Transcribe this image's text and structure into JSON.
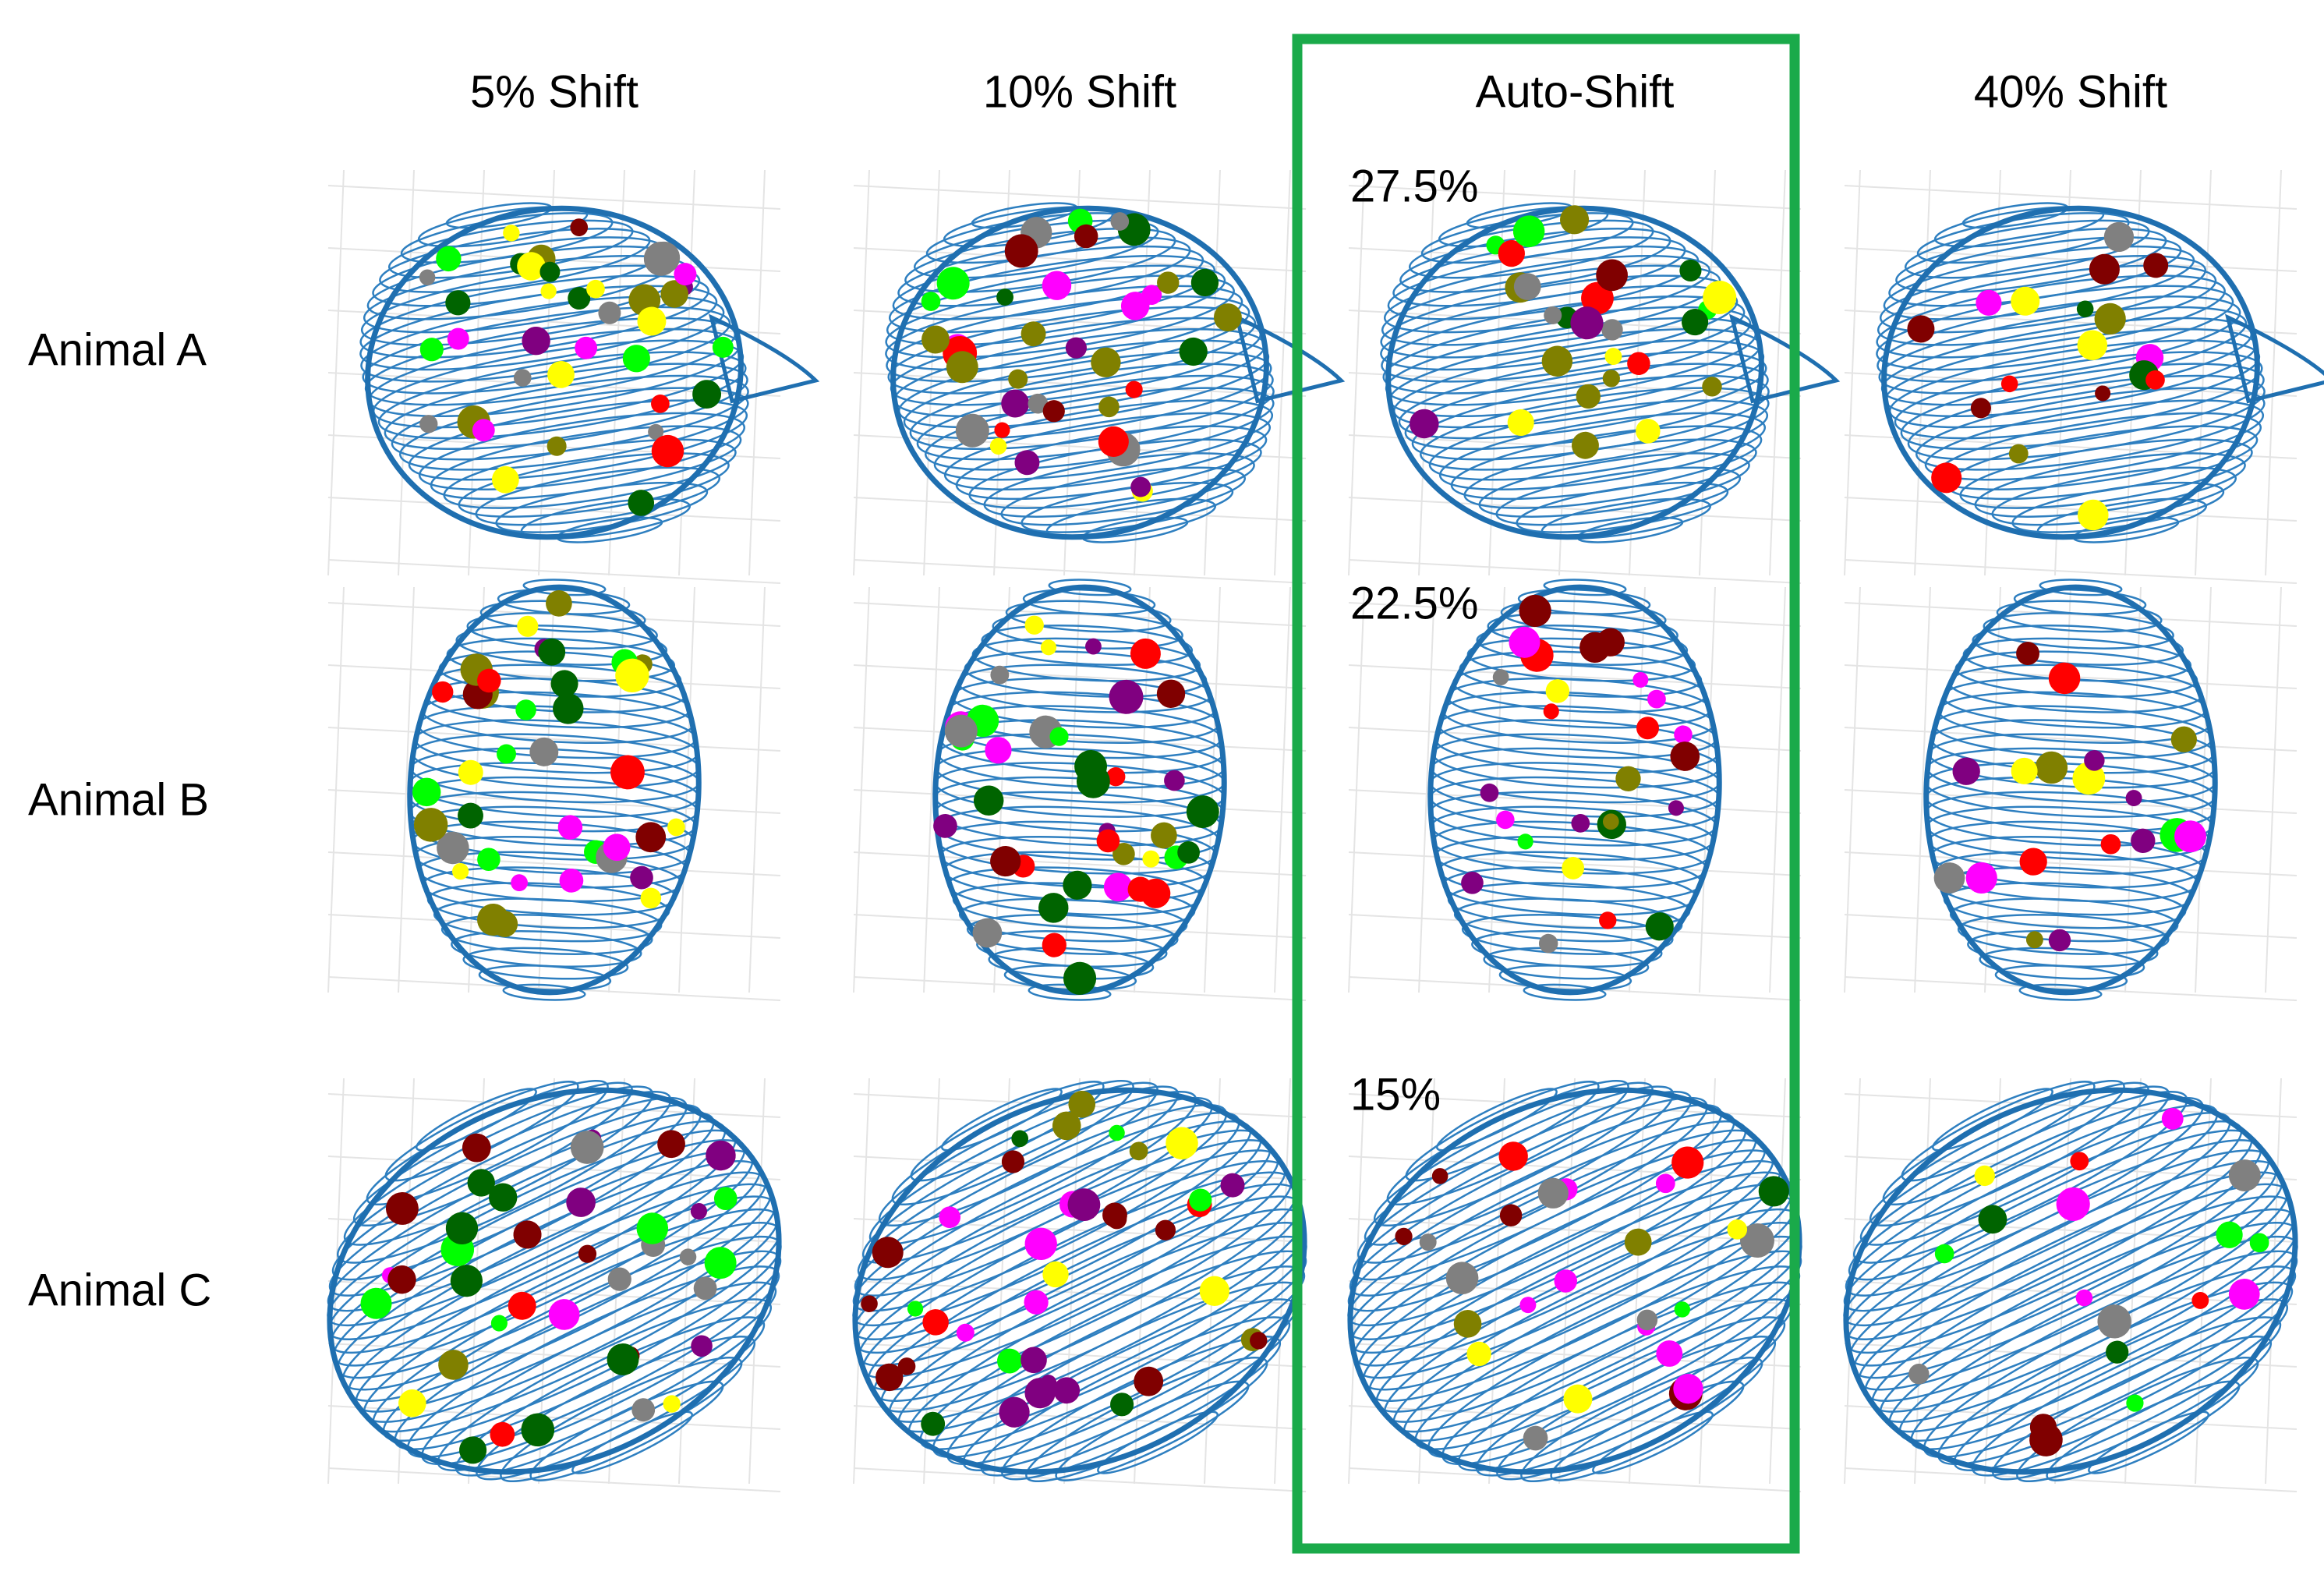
{
  "columns": [
    "5% Shift",
    "10% Shift",
    "Auto-Shift",
    "40% Shift"
  ],
  "rows": [
    "Animal A",
    "Animal B",
    "Animal C"
  ],
  "auto_shift_values": [
    "27.5%",
    "22.5%",
    "15%"
  ]
}
